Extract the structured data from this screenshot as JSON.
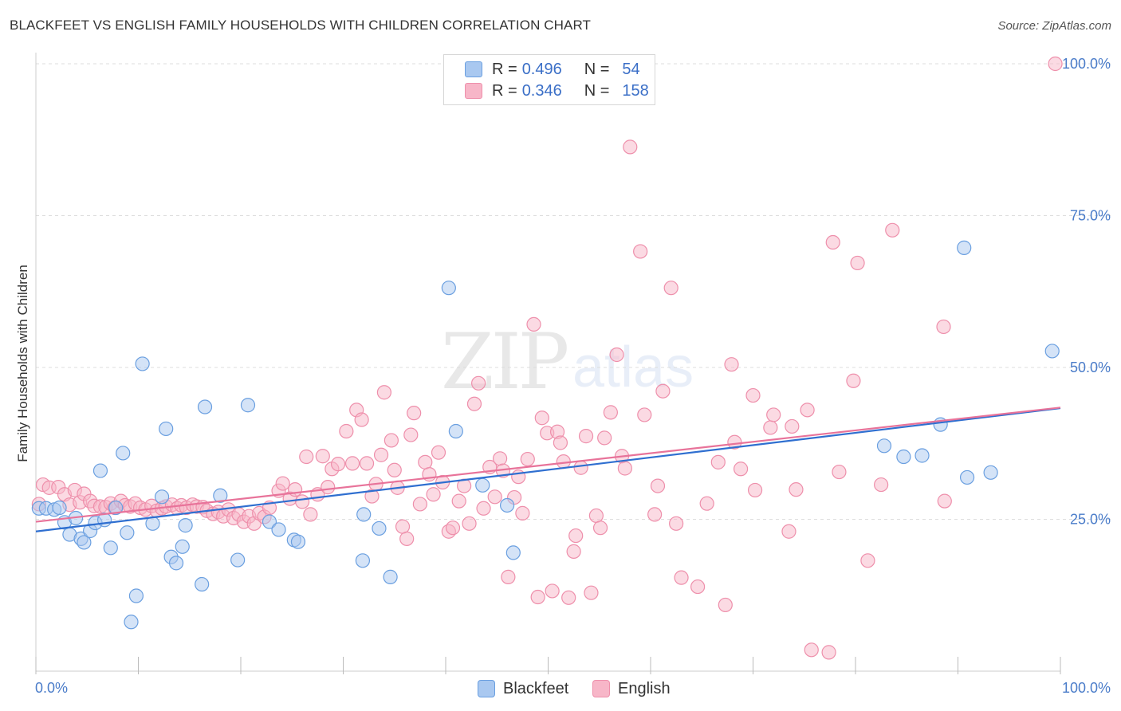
{
  "title": "BLACKFEET VS ENGLISH FAMILY HOUSEHOLDS WITH CHILDREN CORRELATION CHART",
  "source": "Source: ZipAtlas.com",
  "watermark": {
    "zip": "ZIP",
    "atlas": "atlas"
  },
  "legend": {
    "rows": [
      {
        "r_label": "R =",
        "r_value": "0.496",
        "n_label": "N =",
        "n_value": "54",
        "color": "#a9c8f0"
      },
      {
        "r_label": "R =",
        "r_value": "0.346",
        "n_label": "N =",
        "n_value": "158",
        "color": "#f7b6c8"
      }
    ]
  },
  "bottom_legend": [
    {
      "label": "Blackfeet",
      "color": "#a9c8f0"
    },
    {
      "label": "English",
      "color": "#f7b6c8"
    }
  ],
  "chart_data": {
    "type": "scatter",
    "title": "BLACKFEET VS ENGLISH FAMILY HOUSEHOLDS WITH CHILDREN CORRELATION CHART",
    "ylabel": "Family Households with Children",
    "xlabel": "",
    "xlim": [
      0,
      100
    ],
    "ylim": [
      0,
      100
    ],
    "x_tick_labels": [
      "0.0%",
      "100.0%"
    ],
    "y_tick_labels": [
      "25.0%",
      "50.0%",
      "75.0%",
      "100.0%"
    ],
    "y_ticks": [
      25,
      50,
      75,
      100
    ],
    "grid": true,
    "legend_position": "top-center",
    "series": [
      {
        "name": "Blackfeet",
        "color": "#6a9fe0",
        "fill": "#a9c8f0",
        "line_color": "#2f6fd0",
        "trend": [
          [
            0,
            23.0
          ],
          [
            100,
            43.3
          ]
        ],
        "points": [
          [
            0.3,
            26.8
          ],
          [
            1.0,
            26.8
          ],
          [
            1.8,
            26.6
          ],
          [
            2.3,
            26.9
          ],
          [
            2.8,
            24.5
          ],
          [
            3.3,
            22.5
          ],
          [
            3.9,
            25.2
          ],
          [
            4.4,
            21.8
          ],
          [
            4.7,
            21.2
          ],
          [
            5.3,
            23.1
          ],
          [
            5.8,
            24.4
          ],
          [
            6.3,
            33.0
          ],
          [
            6.7,
            24.9
          ],
          [
            7.3,
            20.3
          ],
          [
            7.8,
            26.9
          ],
          [
            8.5,
            35.9
          ],
          [
            8.9,
            22.8
          ],
          [
            9.8,
            12.4
          ],
          [
            9.3,
            8.1
          ],
          [
            10.4,
            50.6
          ],
          [
            11.4,
            24.3
          ],
          [
            12.3,
            28.7
          ],
          [
            12.7,
            39.9
          ],
          [
            13.2,
            18.8
          ],
          [
            13.7,
            17.8
          ],
          [
            14.3,
            20.5
          ],
          [
            14.6,
            24.0
          ],
          [
            16.5,
            43.5
          ],
          [
            16.2,
            14.3
          ],
          [
            18.0,
            28.9
          ],
          [
            19.7,
            18.3
          ],
          [
            20.7,
            43.8
          ],
          [
            22.8,
            24.6
          ],
          [
            23.7,
            23.3
          ],
          [
            25.2,
            21.6
          ],
          [
            25.6,
            21.3
          ],
          [
            32.0,
            25.8
          ],
          [
            31.9,
            18.2
          ],
          [
            33.5,
            23.5
          ],
          [
            34.6,
            15.5
          ],
          [
            40.3,
            63.1
          ],
          [
            41.0,
            39.5
          ],
          [
            43.6,
            30.6
          ],
          [
            46.0,
            27.3
          ],
          [
            46.6,
            19.5
          ],
          [
            82.8,
            37.1
          ],
          [
            84.7,
            35.3
          ],
          [
            86.5,
            35.5
          ],
          [
            88.3,
            40.6
          ],
          [
            90.6,
            69.7
          ],
          [
            90.9,
            31.9
          ],
          [
            93.2,
            32.7
          ],
          [
            99.2,
            52.7
          ]
        ]
      },
      {
        "name": "English",
        "color": "#ee8fab",
        "fill": "#f7b6c8",
        "line_color": "#e8739a",
        "trend": [
          [
            0,
            24.6
          ],
          [
            100,
            43.4
          ]
        ],
        "points": [
          [
            0.3,
            27.5
          ],
          [
            0.7,
            30.7
          ],
          [
            1.3,
            30.2
          ],
          [
            2.2,
            30.3
          ],
          [
            2.8,
            29.1
          ],
          [
            3.3,
            27.4
          ],
          [
            3.8,
            29.8
          ],
          [
            4.3,
            27.8
          ],
          [
            4.7,
            29.2
          ],
          [
            5.3,
            28.0
          ],
          [
            5.7,
            27.2
          ],
          [
            6.3,
            27.1
          ],
          [
            6.8,
            27.0
          ],
          [
            7.3,
            27.6
          ],
          [
            7.7,
            26.9
          ],
          [
            8.3,
            28.0
          ],
          [
            8.7,
            27.3
          ],
          [
            9.2,
            27.1
          ],
          [
            9.7,
            27.6
          ],
          [
            10.2,
            26.9
          ],
          [
            10.7,
            26.6
          ],
          [
            11.3,
            27.2
          ],
          [
            11.8,
            26.4
          ],
          [
            12.3,
            26.8
          ],
          [
            12.7,
            27.1
          ],
          [
            13.3,
            27.4
          ],
          [
            13.8,
            26.8
          ],
          [
            14.2,
            27.3
          ],
          [
            14.7,
            26.9
          ],
          [
            15.3,
            27.4
          ],
          [
            15.7,
            27.1
          ],
          [
            16.3,
            27.0
          ],
          [
            16.7,
            26.4
          ],
          [
            17.3,
            25.9
          ],
          [
            17.8,
            26.2
          ],
          [
            18.3,
            25.5
          ],
          [
            18.8,
            26.6
          ],
          [
            19.3,
            25.2
          ],
          [
            19.8,
            25.8
          ],
          [
            20.3,
            24.6
          ],
          [
            20.8,
            25.5
          ],
          [
            21.3,
            24.3
          ],
          [
            21.8,
            26.0
          ],
          [
            22.3,
            25.4
          ],
          [
            22.8,
            26.9
          ],
          [
            23.7,
            29.7
          ],
          [
            24.1,
            30.9
          ],
          [
            24.8,
            28.4
          ],
          [
            25.3,
            29.9
          ],
          [
            26.0,
            27.9
          ],
          [
            26.4,
            35.3
          ],
          [
            26.8,
            25.8
          ],
          [
            27.5,
            29.1
          ],
          [
            28.0,
            35.4
          ],
          [
            28.5,
            30.3
          ],
          [
            28.9,
            33.3
          ],
          [
            29.5,
            34.1
          ],
          [
            30.3,
            39.5
          ],
          [
            30.9,
            34.2
          ],
          [
            31.3,
            43.0
          ],
          [
            31.8,
            41.4
          ],
          [
            32.3,
            34.2
          ],
          [
            32.8,
            28.8
          ],
          [
            33.2,
            30.8
          ],
          [
            33.7,
            35.6
          ],
          [
            34.0,
            45.9
          ],
          [
            34.7,
            38.0
          ],
          [
            35.0,
            33.1
          ],
          [
            35.3,
            30.2
          ],
          [
            35.8,
            23.8
          ],
          [
            36.2,
            21.8
          ],
          [
            36.9,
            42.5
          ],
          [
            36.6,
            38.9
          ],
          [
            37.5,
            27.5
          ],
          [
            38.0,
            34.4
          ],
          [
            38.4,
            32.4
          ],
          [
            38.8,
            29.1
          ],
          [
            39.3,
            36.0
          ],
          [
            39.7,
            31.1
          ],
          [
            40.3,
            23.0
          ],
          [
            40.7,
            23.6
          ],
          [
            41.3,
            28.0
          ],
          [
            41.8,
            30.5
          ],
          [
            42.3,
            24.3
          ],
          [
            42.8,
            44.0
          ],
          [
            43.2,
            47.4
          ],
          [
            43.7,
            26.8
          ],
          [
            44.3,
            33.6
          ],
          [
            44.8,
            28.7
          ],
          [
            45.3,
            35.0
          ],
          [
            45.6,
            33.0
          ],
          [
            46.1,
            15.5
          ],
          [
            46.7,
            28.6
          ],
          [
            47.1,
            32.0
          ],
          [
            47.5,
            26.0
          ],
          [
            48.0,
            34.9
          ],
          [
            48.6,
            57.1
          ],
          [
            49.0,
            12.2
          ],
          [
            49.4,
            41.7
          ],
          [
            49.9,
            39.2
          ],
          [
            50.4,
            13.2
          ],
          [
            50.9,
            39.4
          ],
          [
            51.2,
            37.6
          ],
          [
            51.5,
            34.5
          ],
          [
            52.0,
            12.1
          ],
          [
            52.5,
            19.7
          ],
          [
            52.7,
            22.3
          ],
          [
            53.2,
            33.5
          ],
          [
            53.7,
            38.7
          ],
          [
            54.2,
            12.9
          ],
          [
            54.7,
            25.6
          ],
          [
            55.1,
            23.6
          ],
          [
            55.5,
            38.4
          ],
          [
            56.1,
            42.6
          ],
          [
            56.7,
            52.1
          ],
          [
            57.2,
            35.4
          ],
          [
            57.5,
            33.4
          ],
          [
            58.0,
            86.3
          ],
          [
            59.0,
            69.1
          ],
          [
            59.4,
            42.2
          ],
          [
            60.4,
            25.8
          ],
          [
            60.7,
            30.5
          ],
          [
            61.2,
            46.1
          ],
          [
            62.0,
            63.1
          ],
          [
            62.5,
            24.3
          ],
          [
            63.0,
            15.4
          ],
          [
            64.6,
            13.9
          ],
          [
            65.5,
            27.6
          ],
          [
            66.6,
            34.4
          ],
          [
            67.3,
            10.9
          ],
          [
            67.9,
            50.5
          ],
          [
            68.2,
            37.7
          ],
          [
            68.8,
            33.3
          ],
          [
            70.0,
            45.4
          ],
          [
            70.2,
            29.8
          ],
          [
            71.7,
            40.1
          ],
          [
            72.0,
            42.2
          ],
          [
            73.5,
            23.0
          ],
          [
            73.8,
            40.3
          ],
          [
            74.2,
            29.9
          ],
          [
            75.3,
            43.0
          ],
          [
            75.7,
            3.5
          ],
          [
            77.4,
            3.1
          ],
          [
            77.8,
            70.6
          ],
          [
            78.4,
            32.8
          ],
          [
            79.8,
            47.8
          ],
          [
            80.2,
            67.2
          ],
          [
            81.2,
            18.2
          ],
          [
            82.5,
            30.7
          ],
          [
            83.6,
            72.6
          ],
          [
            88.7,
            28.0
          ],
          [
            88.6,
            56.7
          ],
          [
            99.5,
            100.0
          ]
        ]
      }
    ]
  }
}
